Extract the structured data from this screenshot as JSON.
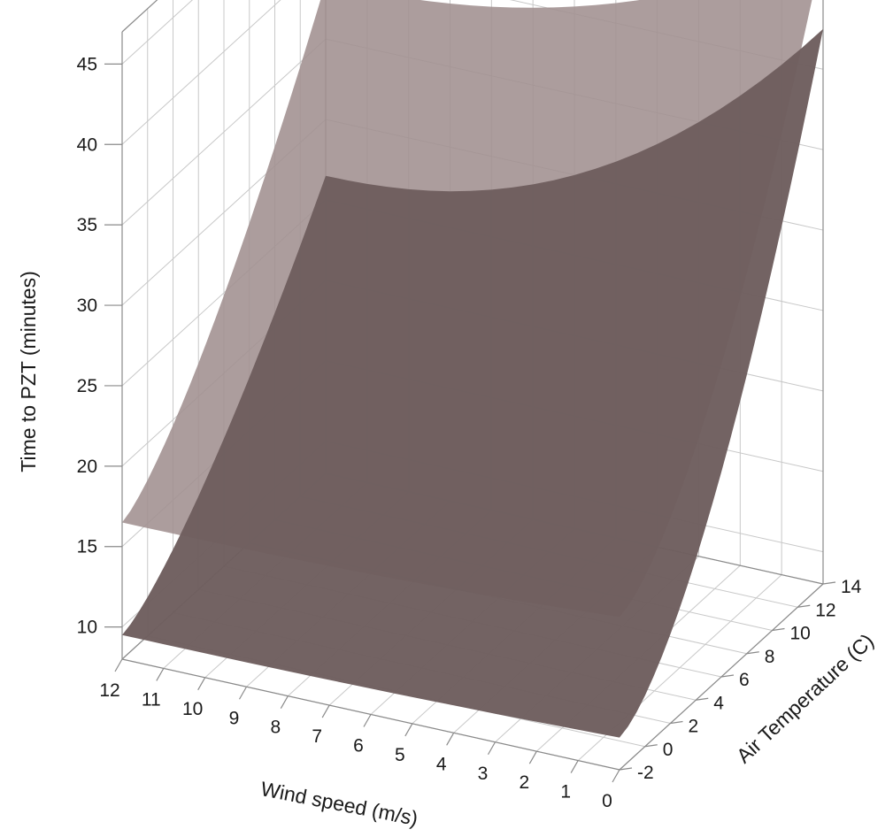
{
  "chart_data": {
    "type": "surface",
    "zlabel": "Time to PZT (minutes)",
    "xlabel": "Wind speed (m/s)",
    "ylabel": "Air Temperature (C)",
    "z_ticks": [
      "10",
      "15",
      "20",
      "25",
      "30",
      "35",
      "40",
      "45"
    ],
    "x_ticks": [
      "12",
      "11",
      "10",
      "9",
      "8",
      "7",
      "6",
      "5",
      "4",
      "3",
      "2",
      "1",
      "0"
    ],
    "y_ticks": [
      "-2",
      "0",
      "2",
      "4",
      "6",
      "8",
      "10",
      "12",
      "14"
    ],
    "xlim": [
      0,
      12
    ],
    "ylim": [
      -2,
      14
    ],
    "zlim": [
      8,
      47
    ],
    "grid": true,
    "series": [
      {
        "color": "#a19090",
        "corners": {
          "wind_12_temp_-2": 16.5,
          "wind_12_temp_14": 38.5,
          "wind_0_temp_-2": 17.5,
          "wind_0_temp_14": 47.5
        }
      },
      {
        "color": "#6e5e5e",
        "corners": {
          "wind_12_temp_-2": 9.5,
          "wind_12_temp_14": 26.5,
          "wind_0_temp_-2": 10.0,
          "wind_0_temp_14": 42.5
        }
      }
    ]
  }
}
